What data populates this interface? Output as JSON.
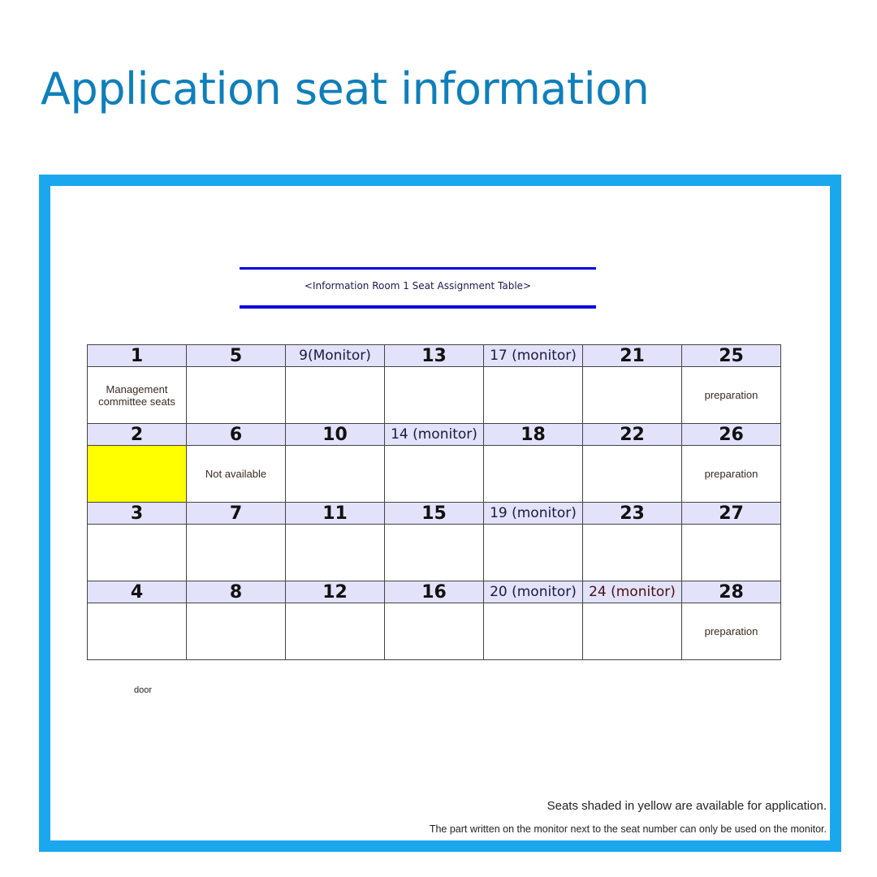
{
  "title": "Application seat information",
  "caption": "<Information Room 1 Seat Assignment Table>",
  "colors": {
    "title": "#0f7fba",
    "frame": "#1aa7ee",
    "available": "#ffff00",
    "header_bg": "#e2e2fb",
    "caption_rule": "#0000e0"
  },
  "rows": [
    {
      "seats": [
        {
          "label": "1",
          "note": "Management committee seats"
        },
        {
          "label": "5",
          "note": ""
        },
        {
          "label": "9(Monitor)",
          "note": "",
          "monitor": true
        },
        {
          "label": "13",
          "note": ""
        },
        {
          "label": "17 (monitor)",
          "note": "",
          "monitor": true
        },
        {
          "label": "21",
          "note": ""
        },
        {
          "label": "25",
          "note": "preparation"
        }
      ]
    },
    {
      "seats": [
        {
          "label": "2",
          "note": "",
          "available": true
        },
        {
          "label": "6",
          "note": "Not available"
        },
        {
          "label": "10",
          "note": ""
        },
        {
          "label": "14 (monitor)",
          "note": "",
          "monitor": true
        },
        {
          "label": "18",
          "note": ""
        },
        {
          "label": "22",
          "note": ""
        },
        {
          "label": "26",
          "note": "preparation"
        }
      ]
    },
    {
      "seats": [
        {
          "label": "3",
          "note": ""
        },
        {
          "label": "7",
          "note": ""
        },
        {
          "label": "11",
          "note": ""
        },
        {
          "label": "15",
          "note": ""
        },
        {
          "label": "19 (monitor)",
          "note": "",
          "monitor": true
        },
        {
          "label": "23",
          "note": ""
        },
        {
          "label": "27",
          "note": ""
        }
      ]
    },
    {
      "seats": [
        {
          "label": "4",
          "note": ""
        },
        {
          "label": "8",
          "note": ""
        },
        {
          "label": "12",
          "note": ""
        },
        {
          "label": "16",
          "note": ""
        },
        {
          "label": "20 (monitor)",
          "note": "",
          "monitor": true
        },
        {
          "label": "24 (monitor)",
          "note": "",
          "monitor": true
        },
        {
          "label": "28",
          "note": "preparation"
        }
      ]
    }
  ],
  "door_label": "door",
  "notes": [
    "Seats shaded in yellow are available for application.",
    "The part written on the monitor next to the seat number can only be used on the monitor."
  ]
}
